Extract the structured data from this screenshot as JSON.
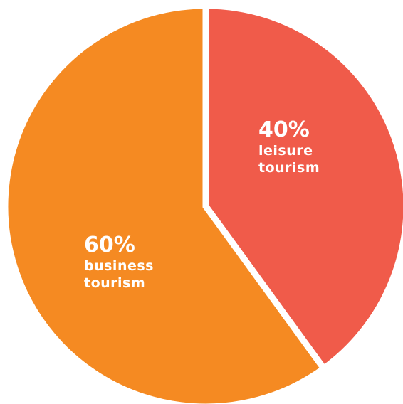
{
  "chart_data": {
    "type": "pie",
    "slices": [
      {
        "label_lines": [
          "leisure",
          "tourism"
        ],
        "percent_text": "40%",
        "value": 40,
        "color": "#f05b4a"
      },
      {
        "label_lines": [
          "business",
          "tourism"
        ],
        "percent_text": "60%",
        "value": 60,
        "color": "#f58a22"
      }
    ],
    "separator_color": "#ffffff"
  }
}
